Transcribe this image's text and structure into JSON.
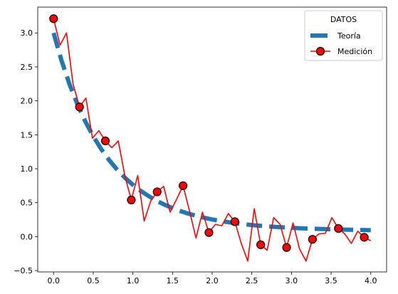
{
  "chart_data": {
    "type": "line",
    "title": "",
    "xlabel": "",
    "ylabel": "",
    "xlim": [
      -0.2,
      4.2
    ],
    "ylim": [
      -0.52,
      3.38
    ],
    "x_ticks": [
      0.0,
      0.5,
      1.0,
      1.5,
      2.0,
      2.5,
      3.0,
      3.5,
      4.0
    ],
    "x_tick_labels": [
      "0.0",
      "0.5",
      "1.0",
      "1.5",
      "2.0",
      "2.5",
      "3.0",
      "3.5",
      "4.0"
    ],
    "y_ticks": [
      -0.5,
      0.0,
      0.5,
      1.0,
      1.5,
      2.0,
      2.5,
      3.0
    ],
    "y_tick_labels": [
      "−0.5",
      "0.0",
      "0.5",
      "1.0",
      "1.5",
      "2.0",
      "2.5",
      "3.0"
    ],
    "grid": false,
    "legend": {
      "title": "DATOS",
      "placement": "top-right",
      "entries": [
        "Teoría",
        "Medición"
      ]
    },
    "series": [
      {
        "name": "Teoría",
        "style": "dashed",
        "color": "#1f77b4",
        "x": [
          0.0,
          0.1,
          0.2,
          0.3,
          0.4,
          0.5,
          0.6,
          0.7,
          0.8,
          0.9,
          1.0,
          1.1,
          1.2,
          1.3,
          1.4,
          1.5,
          1.6,
          1.7,
          1.8,
          1.9,
          2.0,
          2.1,
          2.2,
          2.3,
          2.4,
          2.5,
          2.6,
          2.7,
          2.8,
          2.9,
          3.0,
          3.1,
          3.2,
          3.3,
          3.4,
          3.5,
          3.6,
          3.7,
          3.8,
          3.9,
          4.0
        ],
        "y": [
          3.0,
          2.593,
          2.247,
          1.951,
          1.697,
          1.478,
          1.29,
          1.128,
          0.988,
          0.867,
          0.763,
          0.673,
          0.596,
          0.528,
          0.47,
          0.42,
          0.376,
          0.338,
          0.306,
          0.278,
          0.253,
          0.232,
          0.213,
          0.197,
          0.183,
          0.171,
          0.16,
          0.151,
          0.143,
          0.136,
          0.13,
          0.124,
          0.119,
          0.115,
          0.111,
          0.108,
          0.105,
          0.102,
          0.1,
          0.097,
          0.095
        ]
      },
      {
        "name": "Medición",
        "style": "solid",
        "color": "#ff0000",
        "x": [
          0.0,
          0.082,
          0.163,
          0.245,
          0.327,
          0.408,
          0.49,
          0.571,
          0.653,
          0.735,
          0.816,
          0.898,
          0.98,
          1.061,
          1.143,
          1.224,
          1.306,
          1.388,
          1.469,
          1.551,
          1.633,
          1.714,
          1.796,
          1.878,
          1.959,
          2.041,
          2.122,
          2.204,
          2.286,
          2.367,
          2.449,
          2.531,
          2.612,
          2.694,
          2.776,
          2.857,
          2.939,
          3.02,
          3.102,
          3.184,
          3.265,
          3.347,
          3.429,
          3.51,
          3.592,
          3.673,
          3.755,
          3.837,
          3.918,
          4.0
        ],
        "y": [
          3.21,
          2.82,
          3.0,
          2.25,
          1.91,
          2.04,
          1.45,
          1.56,
          1.41,
          1.31,
          1.41,
          0.9,
          0.54,
          0.9,
          0.23,
          0.52,
          0.66,
          0.74,
          0.36,
          0.55,
          0.75,
          0.38,
          -0.02,
          0.36,
          0.06,
          0.18,
          0.16,
          0.34,
          0.22,
          -0.1,
          -0.36,
          0.41,
          -0.12,
          -0.2,
          0.28,
          0.18,
          -0.16,
          0.2,
          -0.18,
          -0.36,
          -0.04,
          0.04,
          0.05,
          0.28,
          0.12,
          0.04,
          -0.1,
          0.08,
          -0.01,
          -0.06
        ]
      }
    ],
    "markers": {
      "series": "Medición",
      "x": [
        0.0,
        0.327,
        0.653,
        0.98,
        1.306,
        1.633,
        1.959,
        2.286,
        2.612,
        2.939,
        3.265,
        3.592,
        3.918
      ],
      "y": [
        3.21,
        1.91,
        1.41,
        0.54,
        0.66,
        0.75,
        0.06,
        0.22,
        -0.12,
        -0.16,
        -0.04,
        0.12,
        -0.01
      ],
      "face_color": "#ff0000",
      "edge_color": "#000000"
    }
  }
}
